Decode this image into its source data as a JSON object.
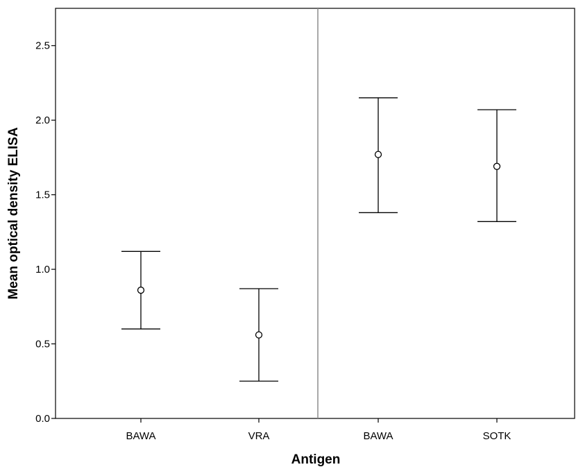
{
  "chart_data": {
    "type": "scatter",
    "subtype": "error-bar",
    "title": "",
    "xlabel": "Antigen",
    "ylabel": "Mean optical density ELISA",
    "ylim": [
      0,
      2.75
    ],
    "y_ticks": [
      "0.0",
      "0.5",
      "1.0",
      "1.5",
      "2.0",
      "2.5"
    ],
    "grid": false,
    "legend": "none",
    "panel_divider": "between categories 2 and 3",
    "categories": [
      "BAWA",
      "VRA",
      "BAWA",
      "SOTK"
    ],
    "values": [
      0.86,
      0.56,
      1.77,
      1.69
    ],
    "error_low": [
      0.6,
      0.25,
      1.38,
      1.32
    ],
    "error_high": [
      1.12,
      0.87,
      2.15,
      2.07
    ],
    "colors": {
      "marker": "#000000",
      "divider": "#8c8c8c",
      "axis": "#000000"
    }
  }
}
